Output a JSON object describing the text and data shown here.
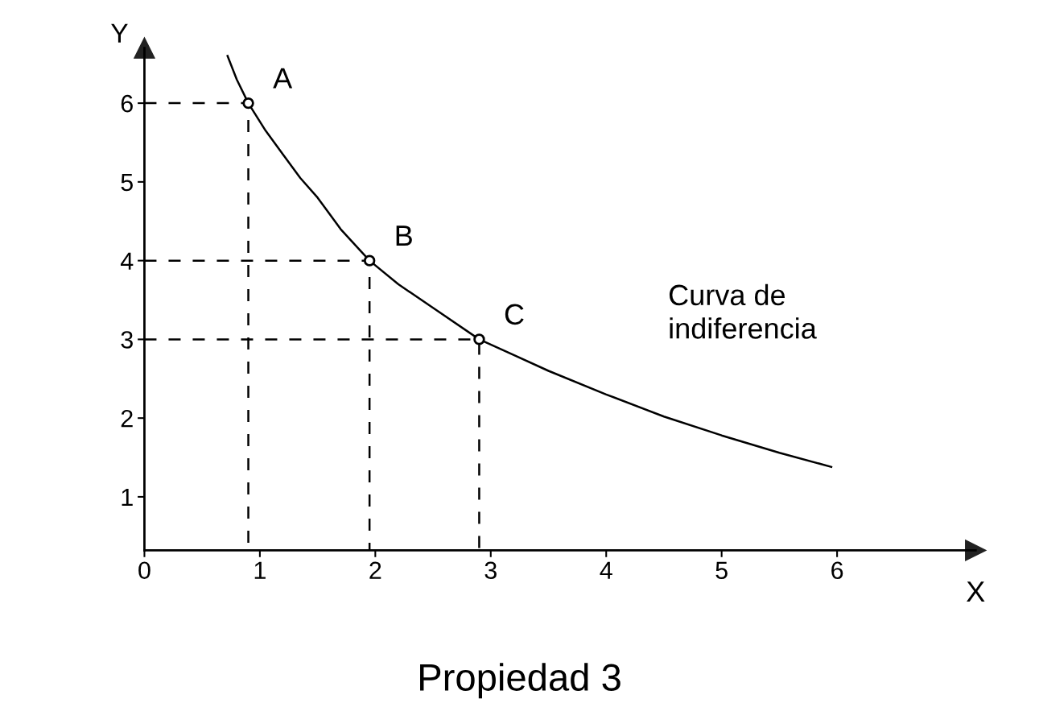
{
  "chart_data": {
    "type": "line",
    "title": "Propiedad 3",
    "xlabel": "X",
    "ylabel": "Y",
    "xlim": [
      0,
      7.2
    ],
    "ylim": [
      0.32,
      6.7
    ],
    "xticks": [
      0,
      1,
      2,
      3,
      4,
      5,
      6
    ],
    "yticks": [
      1,
      2,
      3,
      4,
      5,
      6
    ],
    "grid": false,
    "legend": false,
    "series": [
      {
        "color": "#000000",
        "line_style": "solid",
        "marker": "none",
        "x": [
          0.72,
          0.8,
          0.9,
          1.05,
          1.2,
          1.35,
          1.5,
          1.7,
          1.95,
          2.2,
          2.5,
          2.9,
          3.2,
          3.5,
          4.0,
          4.5,
          5.0,
          5.5,
          5.95
        ],
        "values": [
          6.6,
          6.3,
          6.0,
          5.65,
          5.35,
          5.05,
          4.8,
          4.4,
          4.0,
          3.7,
          3.4,
          3.0,
          2.8,
          2.6,
          2.3,
          2.02,
          1.78,
          1.56,
          1.38
        ]
      },
      {
        "color": "#000000",
        "line_style": "dashed",
        "marker": "none",
        "x": [
          0,
          0.9,
          0.9
        ],
        "values": [
          6.0,
          6.0,
          0.32
        ]
      },
      {
        "color": "#000000",
        "line_style": "dashed",
        "marker": "none",
        "x": [
          0,
          1.95,
          1.95
        ],
        "values": [
          4.0,
          4.0,
          0.32
        ]
      },
      {
        "color": "#000000",
        "line_style": "dashed",
        "marker": "none",
        "x": [
          0,
          2.9,
          2.9
        ],
        "values": [
          3.0,
          3.0,
          0.32
        ]
      },
      {
        "type": "scatter",
        "color": "#000000",
        "marker": "circle",
        "x": [
          0.9,
          1.95,
          2.9
        ],
        "values": [
          6.0,
          4.0,
          3.0
        ]
      }
    ],
    "annotations": [
      {
        "text": "A",
        "x": 0.9,
        "y": 6.0
      },
      {
        "text": "B",
        "x": 1.95,
        "y": 4.0
      },
      {
        "text": "C",
        "x": 2.9,
        "y": 3.0
      },
      "Curva de\nindiferencia"
    ]
  }
}
